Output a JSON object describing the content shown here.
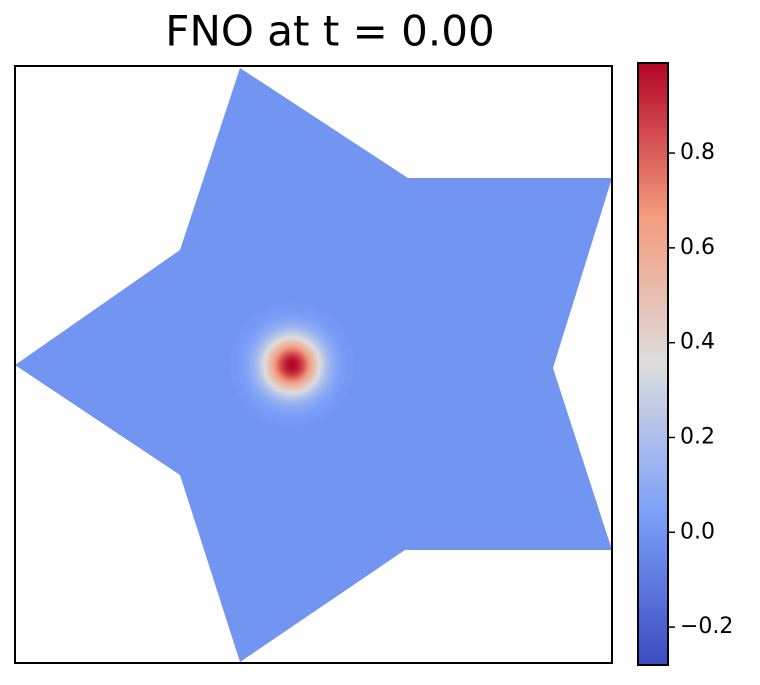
{
  "chart_data": {
    "type": "heatmap",
    "title": "FNO at t = 0.00",
    "colormap": "coolwarm",
    "background_value": 0.0,
    "peak_value": 0.99,
    "clim": [
      -0.28,
      0.99
    ],
    "cticks": [
      {
        "value": -0.2,
        "label": "−0.2"
      },
      {
        "value": 0,
        "label": "0.0"
      },
      0.2,
      0.4,
      0.6,
      0.8
    ]
  }
}
